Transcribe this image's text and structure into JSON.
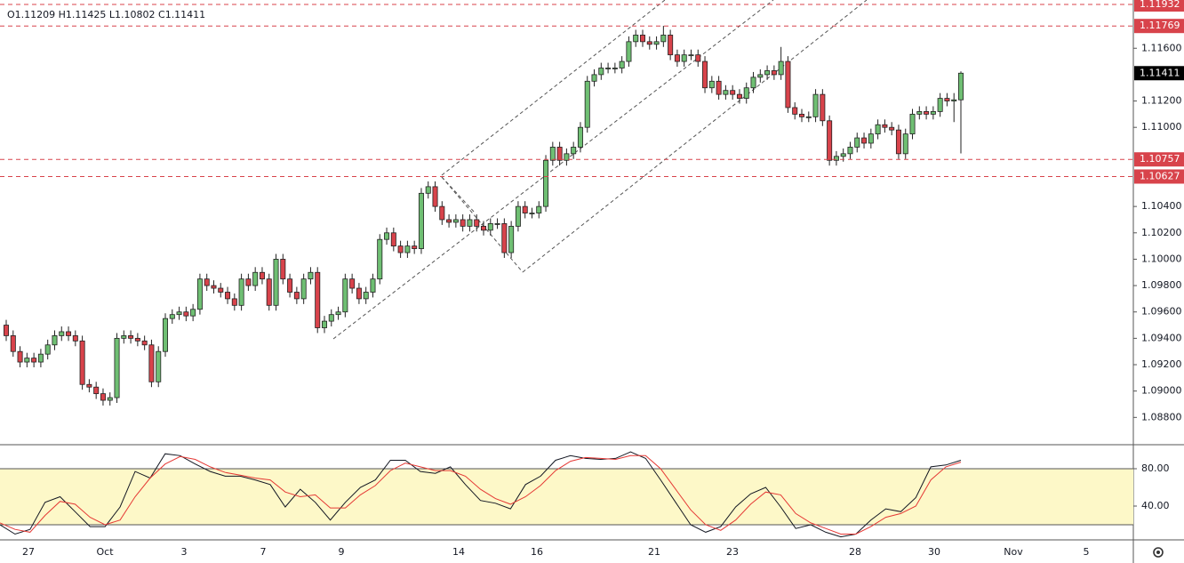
{
  "chart_data": [
    {
      "type": "candlestick",
      "ohlc_header": "O1.11209 H1.11425 L1.10802 C1.11411",
      "x_axis_labels": [
        "27",
        "Oct",
        "3",
        "7",
        "9",
        "14",
        "16",
        "21",
        "23",
        "28",
        "30",
        "Nov",
        "5"
      ],
      "up_color": "#6fbf73",
      "down_color": "#d8434b",
      "line_color": "#d8434b",
      "ylim": [
        1.08593,
        1.11966
      ],
      "yticks": [
        {
          "value": 1.116,
          "label": "1.11600"
        },
        {
          "value": 1.112,
          "label": "1.11200"
        },
        {
          "value": 1.11,
          "label": "1.11000"
        },
        {
          "value": 1.104,
          "label": "1.10400"
        },
        {
          "value": 1.102,
          "label": "1.10200"
        },
        {
          "value": 1.1,
          "label": "1.10000"
        },
        {
          "value": 1.098,
          "label": "1.09800"
        },
        {
          "value": 1.096,
          "label": "1.09600"
        },
        {
          "value": 1.094,
          "label": "1.09400"
        },
        {
          "value": 1.092,
          "label": "1.09200"
        },
        {
          "value": 1.09,
          "label": "1.09000"
        },
        {
          "value": 1.088,
          "label": "1.08800"
        }
      ],
      "hlines": [
        1.11932,
        1.11769,
        1.10757,
        1.10627
      ],
      "open": [
        1.095,
        1.0942,
        1.093,
        1.0922,
        1.0925,
        1.0922,
        1.0928,
        1.0935,
        1.0942,
        1.0945,
        1.0942,
        1.0938,
        1.0905,
        1.0903,
        1.0898,
        1.0893,
        1.0895,
        1.094,
        1.0942,
        1.094,
        1.0938,
        1.0935,
        1.0907,
        1.093,
        1.0955,
        1.0958,
        1.096,
        1.0957,
        1.0962,
        1.0985,
        1.098,
        1.0978,
        1.0975,
        1.097,
        1.0965,
        1.0985,
        1.098,
        1.099,
        1.0985,
        1.0965,
        1.1,
        1.0985,
        1.0975,
        1.097,
        1.0985,
        1.099,
        1.0948,
        1.0953,
        1.0958,
        1.096,
        1.0985,
        1.0978,
        1.097,
        1.0975,
        1.0985,
        1.1015,
        1.102,
        1.101,
        1.1005,
        1.101,
        1.1008,
        1.105,
        1.1055,
        1.104,
        1.103,
        1.1028,
        1.103,
        1.1025,
        1.103,
        1.1025,
        1.1022,
        1.1027,
        1.1027,
        1.1005,
        1.1025,
        1.104,
        1.1035,
        1.1035,
        1.104,
        1.1075,
        1.1085,
        1.1075,
        1.108,
        1.1085,
        1.11,
        1.1135,
        1.114,
        1.1145,
        1.1145,
        1.1145,
        1.115,
        1.1165,
        1.117,
        1.1165,
        1.1163,
        1.1165,
        1.117,
        1.1155,
        1.115,
        1.1155,
        1.1155,
        1.115,
        1.113,
        1.1135,
        1.1125,
        1.1128,
        1.1125,
        1.1122,
        1.113,
        1.1138,
        1.114,
        1.1143,
        1.114,
        1.115,
        1.1115,
        1.111,
        1.1108,
        1.1108,
        1.1125,
        1.1105,
        1.1075,
        1.1078,
        1.108,
        1.1085,
        1.1092,
        1.1088,
        1.1095,
        1.1102,
        1.11,
        1.1098,
        1.108,
        1.1095,
        1.111,
        1.1112,
        1.111,
        1.1112,
        1.1122,
        1.112,
        1.11209
      ],
      "high": [
        1.0954,
        1.0946,
        1.0934,
        1.0929,
        1.0929,
        1.0932,
        1.0939,
        1.0946,
        1.0949,
        1.0949,
        1.0946,
        1.0942,
        1.0909,
        1.0907,
        1.0902,
        1.0899,
        1.0944,
        1.0946,
        1.0946,
        1.0944,
        1.0942,
        1.0939,
        1.0934,
        1.0959,
        1.0962,
        1.0964,
        1.0964,
        1.0966,
        1.0989,
        1.0989,
        1.0984,
        1.0982,
        1.0979,
        1.0974,
        1.0989,
        1.0989,
        1.0994,
        1.0994,
        1.0989,
        1.1004,
        1.1004,
        1.0989,
        1.0979,
        1.0989,
        1.0994,
        1.0994,
        1.0957,
        1.0962,
        1.0964,
        1.0989,
        1.0989,
        1.0982,
        1.0979,
        1.0989,
        1.1019,
        1.1024,
        1.1024,
        1.1014,
        1.1014,
        1.1014,
        1.1054,
        1.1059,
        1.1059,
        1.1044,
        1.1034,
        1.1034,
        1.1034,
        1.1034,
        1.1034,
        1.1029,
        1.1031,
        1.1031,
        1.1031,
        1.1029,
        1.1044,
        1.1044,
        1.1039,
        1.1044,
        1.1079,
        1.1089,
        1.1089,
        1.1084,
        1.1089,
        1.1104,
        1.1139,
        1.1144,
        1.1149,
        1.1149,
        1.1149,
        1.1154,
        1.1169,
        1.1174,
        1.1174,
        1.1169,
        1.1169,
        1.1177,
        1.1174,
        1.1159,
        1.1159,
        1.1159,
        1.1159,
        1.1154,
        1.1139,
        1.1139,
        1.1132,
        1.1132,
        1.1129,
        1.1134,
        1.1142,
        1.1144,
        1.1147,
        1.1147,
        1.1161,
        1.1154,
        1.1119,
        1.1114,
        1.1112,
        1.1129,
        1.1129,
        1.1109,
        1.1082,
        1.1084,
        1.1089,
        1.1096,
        1.1096,
        1.1099,
        1.1106,
        1.1106,
        1.1104,
        1.1102,
        1.1099,
        1.1114,
        1.1116,
        1.1116,
        1.1116,
        1.1126,
        1.1126,
        1.1126,
        1.11425
      ],
      "low": [
        1.0938,
        1.0926,
        1.0918,
        1.0918,
        1.0918,
        1.0918,
        1.0924,
        1.0931,
        1.0938,
        1.0938,
        1.0934,
        1.0901,
        1.0899,
        1.0894,
        1.0889,
        1.0889,
        1.0891,
        1.0936,
        1.0936,
        1.0934,
        1.0931,
        1.0903,
        1.0903,
        1.0926,
        1.0951,
        1.0954,
        1.0953,
        1.0953,
        1.0958,
        1.0976,
        1.0974,
        1.0971,
        1.0966,
        1.0961,
        1.0961,
        1.0976,
        1.0976,
        1.0981,
        1.0961,
        1.0961,
        1.0981,
        1.0971,
        1.0966,
        1.0966,
        1.0981,
        1.0944,
        1.0944,
        1.0949,
        1.0954,
        1.0956,
        1.0974,
        1.0966,
        1.0966,
        1.0971,
        1.0981,
        1.1011,
        1.1006,
        1.1001,
        1.1001,
        1.1004,
        1.1004,
        1.1046,
        1.1036,
        1.1026,
        1.1024,
        1.1024,
        1.1021,
        1.1021,
        1.1021,
        1.1018,
        1.1018,
        1.1023,
        1.1001,
        1.1001,
        1.1021,
        1.1031,
        1.1031,
        1.1031,
        1.1036,
        1.1071,
        1.1071,
        1.1071,
        1.1076,
        1.1081,
        1.1096,
        1.1131,
        1.1136,
        1.1141,
        1.1141,
        1.1141,
        1.1146,
        1.1161,
        1.1161,
        1.1159,
        1.1159,
        1.1161,
        1.1151,
        1.1146,
        1.1146,
        1.1151,
        1.1146,
        1.1126,
        1.1126,
        1.1121,
        1.1121,
        1.1121,
        1.1118,
        1.1118,
        1.1126,
        1.1134,
        1.1136,
        1.1136,
        1.1136,
        1.1111,
        1.1106,
        1.1104,
        1.1104,
        1.1104,
        1.1101,
        1.1071,
        1.1071,
        1.1074,
        1.1076,
        1.1081,
        1.1084,
        1.1084,
        1.1091,
        1.1096,
        1.1094,
        1.1076,
        1.1076,
        1.1091,
        1.1106,
        1.1106,
        1.1106,
        1.1108,
        1.1116,
        1.1104,
        1.10802
      ],
      "close": [
        1.0942,
        1.093,
        1.0922,
        1.0925,
        1.0922,
        1.0928,
        1.0935,
        1.0942,
        1.0945,
        1.0942,
        1.0938,
        1.0905,
        1.0903,
        1.0898,
        1.0893,
        1.0895,
        1.094,
        1.0942,
        1.094,
        1.0938,
        1.0935,
        1.0907,
        1.093,
        1.0955,
        1.0958,
        1.096,
        1.0957,
        1.0962,
        1.0985,
        1.098,
        1.0978,
        1.0975,
        1.097,
        1.0965,
        1.0985,
        1.098,
        1.099,
        1.0985,
        1.0965,
        1.1,
        1.0985,
        1.0975,
        1.097,
        1.0985,
        1.099,
        1.0948,
        1.0953,
        1.0958,
        1.096,
        1.0985,
        1.0978,
        1.097,
        1.0975,
        1.0985,
        1.1015,
        1.102,
        1.101,
        1.1005,
        1.101,
        1.1008,
        1.105,
        1.1055,
        1.104,
        1.103,
        1.1028,
        1.103,
        1.1025,
        1.103,
        1.1025,
        1.1022,
        1.1027,
        1.1027,
        1.1005,
        1.1025,
        1.104,
        1.1035,
        1.1035,
        1.104,
        1.1075,
        1.1085,
        1.1075,
        1.108,
        1.1085,
        1.11,
        1.1135,
        1.114,
        1.1145,
        1.1145,
        1.1145,
        1.115,
        1.1165,
        1.117,
        1.1165,
        1.1163,
        1.1165,
        1.117,
        1.1155,
        1.115,
        1.1155,
        1.1155,
        1.115,
        1.113,
        1.1135,
        1.1125,
        1.1128,
        1.1125,
        1.1122,
        1.113,
        1.1138,
        1.114,
        1.1143,
        1.114,
        1.115,
        1.1115,
        1.111,
        1.1108,
        1.1108,
        1.1125,
        1.1105,
        1.1075,
        1.1078,
        1.108,
        1.1085,
        1.1092,
        1.1088,
        1.1095,
        1.1102,
        1.11,
        1.1098,
        1.108,
        1.1095,
        1.111,
        1.1112,
        1.111,
        1.1112,
        1.1122,
        1.112,
        1.11209,
        1.11411
      ]
    },
    {
      "type": "line",
      "ylim": [
        3.8,
        105.7
      ],
      "yticks": [
        {
          "value": 80,
          "label": "80.00"
        },
        {
          "value": 40,
          "label": "40.00"
        }
      ],
      "band": [
        20,
        80
      ],
      "band_color": "#fdf8c8",
      "series": [
        {
          "color": "#131722",
          "values": [
            20,
            10,
            15,
            44,
            50,
            34,
            18,
            18,
            39,
            77,
            70,
            96,
            94,
            85,
            77,
            72,
            72,
            68,
            63,
            39,
            58,
            44,
            25,
            44,
            60,
            68,
            89,
            89,
            77,
            75,
            82,
            63,
            46,
            43,
            37,
            63,
            72,
            89,
            94,
            91,
            90,
            91,
            98,
            91,
            68,
            44,
            20,
            12,
            18,
            39,
            53,
            60,
            39,
            16,
            20,
            12,
            7,
            10,
            25,
            37,
            34,
            49,
            82,
            84,
            89
          ]
        },
        {
          "color": "#e53935",
          "values": [
            22,
            15,
            12,
            30,
            45,
            42,
            28,
            20,
            25,
            50,
            70,
            85,
            93,
            90,
            82,
            76,
            73,
            70,
            68,
            55,
            50,
            52,
            38,
            38,
            52,
            62,
            78,
            86,
            82,
            78,
            78,
            72,
            58,
            48,
            42,
            50,
            62,
            78,
            88,
            92,
            91,
            90,
            94,
            94,
            80,
            58,
            36,
            20,
            14,
            25,
            42,
            55,
            52,
            32,
            22,
            16,
            10,
            10,
            18,
            28,
            32,
            40,
            68,
            82,
            87
          ]
        }
      ]
    }
  ]
}
